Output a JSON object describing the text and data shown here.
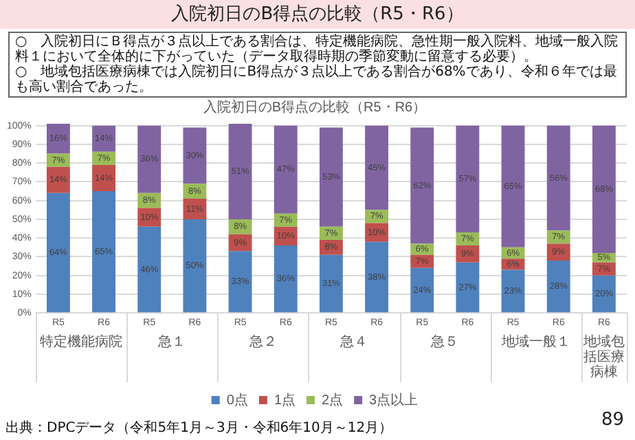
{
  "chart_data": {
    "type": "bar",
    "title": "入院初日のB得点の比較（R5・R6）",
    "subtitle": "入院初日のB得点の比較（R5・R6）",
    "annotations": [
      "○　入院初日にＢ得点が３点以上である割合は、特定機能病院、急性期一般入院料、地域一般入院料１において全体的に下がっていた（データ取得時期の季節変動に留意する必要）。",
      "○　地域包括医療病棟では入院初日にB得点が３点以上である割合が68%であり、令和６年では最も高い割合であった。",
      "特定機能病院",
      "急１",
      "急２",
      "急４",
      "急５",
      "地域一般１",
      "地域包括医療病棟",
      "出典：DPCデータ（令和5年1月～3月・令和6年10月～12月）",
      "89"
    ],
    "categories": [
      "R5",
      "R6",
      "R5",
      "R6",
      "R5",
      "R6",
      "R5",
      "R6",
      "R5",
      "R6",
      "R5",
      "R6",
      "R6"
    ],
    "stacked": true,
    "ylim": [
      0,
      101
    ],
    "yticks": [
      {
        "value": 0,
        "label": "0%"
      },
      {
        "value": 10,
        "label": "10%"
      },
      {
        "value": 20,
        "label": "20%"
      },
      {
        "value": 30,
        "label": "30%"
      },
      {
        "value": 40,
        "label": "40%"
      },
      {
        "value": 50,
        "label": "50%"
      },
      {
        "value": 60,
        "label": "60%"
      },
      {
        "value": 70,
        "label": "70%"
      },
      {
        "value": 80,
        "label": "80%"
      },
      {
        "value": 90,
        "label": "90%"
      },
      {
        "value": 100,
        "label": "100%"
      }
    ],
    "grid": "y",
    "legend": "bottom",
    "series": [
      {
        "name": "0点",
        "color": "#4f81bd",
        "values": [
          64,
          65,
          46,
          50,
          33,
          36,
          31,
          38,
          24,
          27,
          23,
          28,
          20
        ],
        "value_labels": [
          "64%",
          "65%",
          "46%",
          "50%",
          "33%",
          "36%",
          "31%",
          "38%",
          "24%",
          "27%",
          "23%",
          "28%",
          "20%"
        ]
      },
      {
        "name": "1点",
        "color": "#c0504d",
        "values": [
          14,
          14,
          10,
          11,
          9,
          10,
          8,
          10,
          7,
          9,
          6,
          9,
          7
        ],
        "value_labels": [
          "14%",
          "14%",
          "10%",
          "11%",
          "9%",
          "10%",
          "8%",
          "10%",
          "7%",
          "9%",
          "6%",
          "9%",
          "7%"
        ]
      },
      {
        "name": "2点",
        "color": "#9bbb59",
        "values": [
          7,
          7,
          8,
          8,
          8,
          7,
          7,
          7,
          6,
          7,
          6,
          7,
          5
        ],
        "value_labels": [
          "7%",
          "7%",
          "8%",
          "8%",
          "8%",
          "7%",
          "7%",
          "7%",
          "6%",
          "7%",
          "6%",
          "7%",
          "5%"
        ]
      },
      {
        "name": "3点以上",
        "color": "#8064a2",
        "values": [
          16,
          14,
          36,
          30,
          51,
          47,
          53,
          45,
          62,
          57,
          65,
          56,
          68
        ],
        "value_labels": [
          "16%",
          "14%",
          "36%",
          "30%",
          "51%",
          "47%",
          "53%",
          "45%",
          "62%",
          "57%",
          "65%",
          "56%",
          "68%"
        ]
      }
    ]
  }
}
